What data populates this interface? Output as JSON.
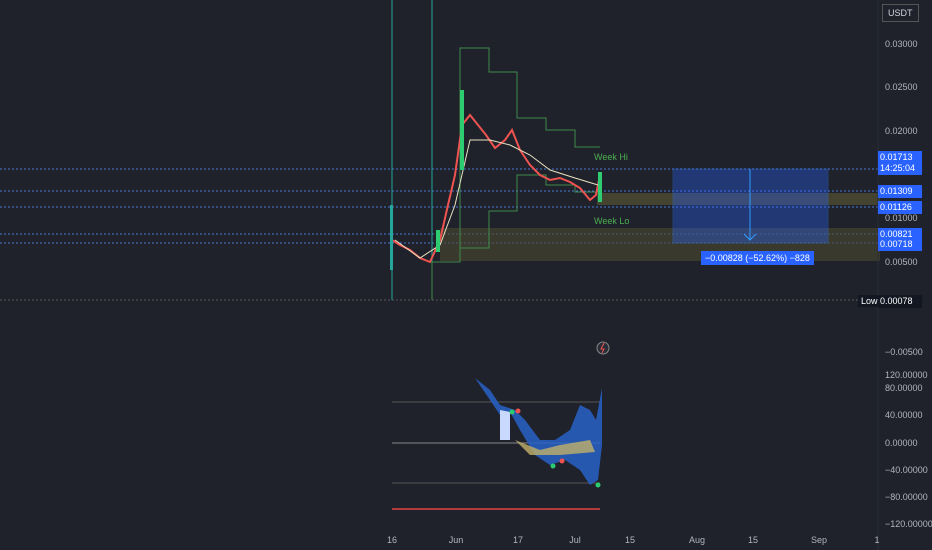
{
  "currency": "USDT",
  "price_axis": [
    "0.03000",
    "0.02500",
    "0.02000",
    "0.01000",
    "0.00500",
    "−0.00500"
  ],
  "price_tags": [
    {
      "value": "0.01713",
      "time": "14:25:04"
    },
    {
      "value": "0.01309"
    },
    {
      "value": "0.01126"
    },
    {
      "value": "0.00821"
    },
    {
      "value": "0.00718"
    }
  ],
  "low": {
    "label": "Low",
    "value": "0.00078"
  },
  "indicator_axis": [
    "120.00000",
    "80.00000",
    "40.00000",
    "0.00000",
    "−40.00000",
    "−80.00000",
    "−120.00000"
  ],
  "time_axis": [
    "16",
    "Jun",
    "17",
    "Jul",
    "15",
    "Aug",
    "15",
    "Sep",
    "1"
  ],
  "annotations": {
    "week_hi": "Week Hi",
    "week_lo": "Week Lo",
    "measure": "−0.00828 (−52.62%) −828"
  }
}
